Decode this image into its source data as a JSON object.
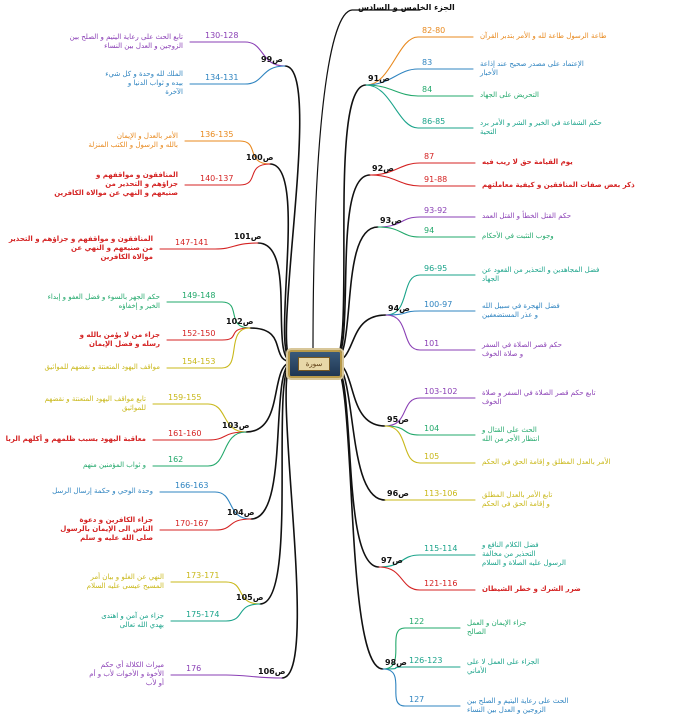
{
  "title": "الجزء الخامس و السادس",
  "center_emblem": "سورة",
  "colors": {
    "orange": "#e8891e",
    "blue": "#2f84c0",
    "green": "#22a86b",
    "teal": "#1aa38a",
    "purple": "#8a3fb5",
    "red": "#d42323",
    "yellow": "#c9b81a",
    "trunk": "#111111"
  },
  "right": [
    {
      "node": "ص91",
      "leaves": [
        {
          "range": "82-80",
          "text": [
            "طاعة الرسول طاعة لله و الأمر بتدبر القرآن"
          ],
          "color": "orange"
        },
        {
          "range": "83",
          "text": [
            "الإعتماد على مصدر صحيح عند إذاعة",
            "الأخبار"
          ],
          "color": "blue"
        },
        {
          "range": "84",
          "text": [
            "التحريض على الجهاد"
          ],
          "color": "green"
        },
        {
          "range": "86-85",
          "text": [
            "حكم الشفاعة في الخير و الشر و الأمر برد",
            "التحية"
          ],
          "color": "teal"
        }
      ]
    },
    {
      "node": "ص92",
      "leaves": [
        {
          "range": "87",
          "text": [
            "يوم القيامة حق لا ريب فيه"
          ],
          "color": "red"
        },
        {
          "range": "91-88",
          "text": [
            "ذكر بعض صفات المنافقين و كيفية معاملتهم"
          ],
          "color": "red"
        }
      ]
    },
    {
      "node": "ص93",
      "leaves": [
        {
          "range": "93-92",
          "text": [
            "حكم القتل الخطأ و القتل العمد"
          ],
          "color": "purple"
        },
        {
          "range": "94",
          "text": [
            "وجوب التثبت في الأحكام"
          ],
          "color": "green"
        }
      ]
    },
    {
      "node": "ص94",
      "leaves": [
        {
          "range": "96-95",
          "text": [
            "فضل المجاهدين و التحذير من القعود عن",
            "الجهاد"
          ],
          "color": "teal"
        },
        {
          "range": "100-97",
          "text": [
            "فضل الهجرة في سبيل الله",
            "و عذر المستضعفين"
          ],
          "color": "blue"
        },
        {
          "range": "101",
          "text": [
            "حكم قصر الصلاة في السفر",
            "و صلاة الخوف"
          ],
          "color": "purple"
        }
      ]
    },
    {
      "node": "ص95",
      "leaves": [
        {
          "range": "103-102",
          "text": [
            "تابع حكم قصر الصلاة في السفر و صلاة",
            "الخوف"
          ],
          "color": "purple"
        },
        {
          "range": "104",
          "text": [
            "الحث على القتال و",
            "انتظار الأجر من الله"
          ],
          "color": "green"
        },
        {
          "range": "105",
          "text": [
            "الأمر بالعدل المطلق و إقامة الحق في الحكم"
          ],
          "color": "yellow"
        }
      ]
    },
    {
      "node": "ص96",
      "leaves": [
        {
          "range": "113-106",
          "text": [
            "تابع الأمر بالعدل المطلق",
            "و إقامة الحق في الحكم"
          ],
          "color": "yellow"
        }
      ]
    },
    {
      "node": "ص97",
      "leaves": [
        {
          "range": "115-114",
          "text": [
            "فضل الكلام النافع و",
            "التحذير من مخالفة",
            "الرسول عليه الصلاة و السلام"
          ],
          "color": "teal"
        },
        {
          "range": "121-116",
          "text": [
            "ضرر الشرك و خطر الشيطان"
          ],
          "color": "red"
        }
      ]
    },
    {
      "node": "ص98",
      "leaves": [
        {
          "range": "122",
          "text": [
            "جزاء الإيمان و العمل",
            "الصالح"
          ],
          "color": "green"
        },
        {
          "range": "126-123",
          "text": [
            "الجزاء على العمل لا على",
            "الأماني"
          ],
          "color": "teal"
        },
        {
          "range": "127",
          "text": [
            "الحث على رعاية اليتيم و الصلح بين",
            "الزوجين و العدل بين النساء"
          ],
          "color": "blue"
        }
      ]
    }
  ],
  "left": [
    {
      "node": "ص99",
      "leaves": [
        {
          "range": "130-128",
          "text": [
            "تابع الحث على رعاية اليتيم و الصلح بين",
            "الزوجين و العدل بين النساء"
          ],
          "color": "purple"
        },
        {
          "range": "134-131",
          "text": [
            "الملك لله وحدة و كل شيء",
            "بيده و ثواب الدنيا و",
            "الآخرة"
          ],
          "color": "blue"
        }
      ]
    },
    {
      "node": "ص100",
      "leaves": [
        {
          "range": "136-135",
          "text": [
            "الأمر بالعدل و الإيمان",
            "بالله و الرسول و الكتب المنزلة"
          ],
          "color": "orange"
        },
        {
          "range": "140-137",
          "text": [
            "المنافقون و مواقفهم و",
            "جزاؤهم و التحذير من",
            "صنيعهم و النهي عن موالاة الكافرين"
          ],
          "color": "red"
        }
      ]
    },
    {
      "node": "ص101",
      "leaves": [
        {
          "range": "147-141",
          "text": [
            "المنافقون و مواقفهم و جزاؤهم و التحذير",
            "من صنيعهم و النهي عن",
            "موالاة الكافرين"
          ],
          "color": "red"
        }
      ]
    },
    {
      "node": "ص102",
      "leaves": [
        {
          "range": "149-148",
          "text": [
            "حكم الجهر بالسوء و فضل العفو و إبداء",
            "الخير و إخفاؤه"
          ],
          "color": "green"
        },
        {
          "range": "152-150",
          "text": [
            "جزاء من لا يؤمن بالله و",
            "رسله و فضل الإيمان"
          ],
          "color": "red"
        },
        {
          "range": "154-153",
          "text": [
            "مواقف اليهود المتعنتة و نقضهم للمواثيق"
          ],
          "color": "yellow"
        }
      ]
    },
    {
      "node": "ص103",
      "leaves": [
        {
          "range": "159-155",
          "text": [
            "تابع مواقف اليهود المتعنتة و نقضهم",
            "للمواثيق"
          ],
          "color": "yellow"
        },
        {
          "range": "161-160",
          "text": [
            "معاقبة اليهود بسبب ظلمهم و أكلهم الربا"
          ],
          "color": "red"
        },
        {
          "range": "162",
          "text": [
            "و ثواب المؤمنين منهم"
          ],
          "color": "green"
        }
      ]
    },
    {
      "node": "ص104",
      "leaves": [
        {
          "range": "166-163",
          "text": [
            "وحدة الوحي و حكمة إرسال الرسل"
          ],
          "color": "blue"
        },
        {
          "range": "170-167",
          "text": [
            "جزاء الكافرين و دعوة",
            "الناس الى الإيمان بالرسول",
            "صلى الله عليه و سلم"
          ],
          "color": "red"
        }
      ]
    },
    {
      "node": "ص105",
      "leaves": [
        {
          "range": "173-171",
          "text": [
            "النهي عن الغلو و بيان أمر",
            "المسيح عيسى عليه السلام"
          ],
          "color": "yellow"
        },
        {
          "range": "175-174",
          "text": [
            "جزاء من آمن و اهتدى",
            "بهدي الله تعالى"
          ],
          "color": "teal"
        }
      ]
    },
    {
      "node": "ص106",
      "leaves": [
        {
          "range": "176",
          "text": [
            "ميراث الكلالة أي حكم",
            "الأخوة و الأخوات لأب و أم",
            "أو لأب"
          ],
          "color": "purple"
        }
      ]
    }
  ]
}
